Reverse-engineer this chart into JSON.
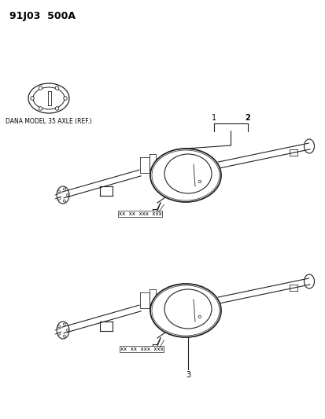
{
  "title": "91J03  500A",
  "background_color": "#ffffff",
  "text_color": "#000000",
  "line_color": "#222222",
  "dana_label": "DANA MODEL 35 AXLE (REF.)",
  "part_numbers_1": "xx  xx  xxx  xxx",
  "part_numbers_2": "xx  xx  xxx  xxx",
  "label_1": "1",
  "label_2": "2",
  "label_3": "3",
  "figsize": [
    4.14,
    5.33
  ],
  "dpi": 100
}
